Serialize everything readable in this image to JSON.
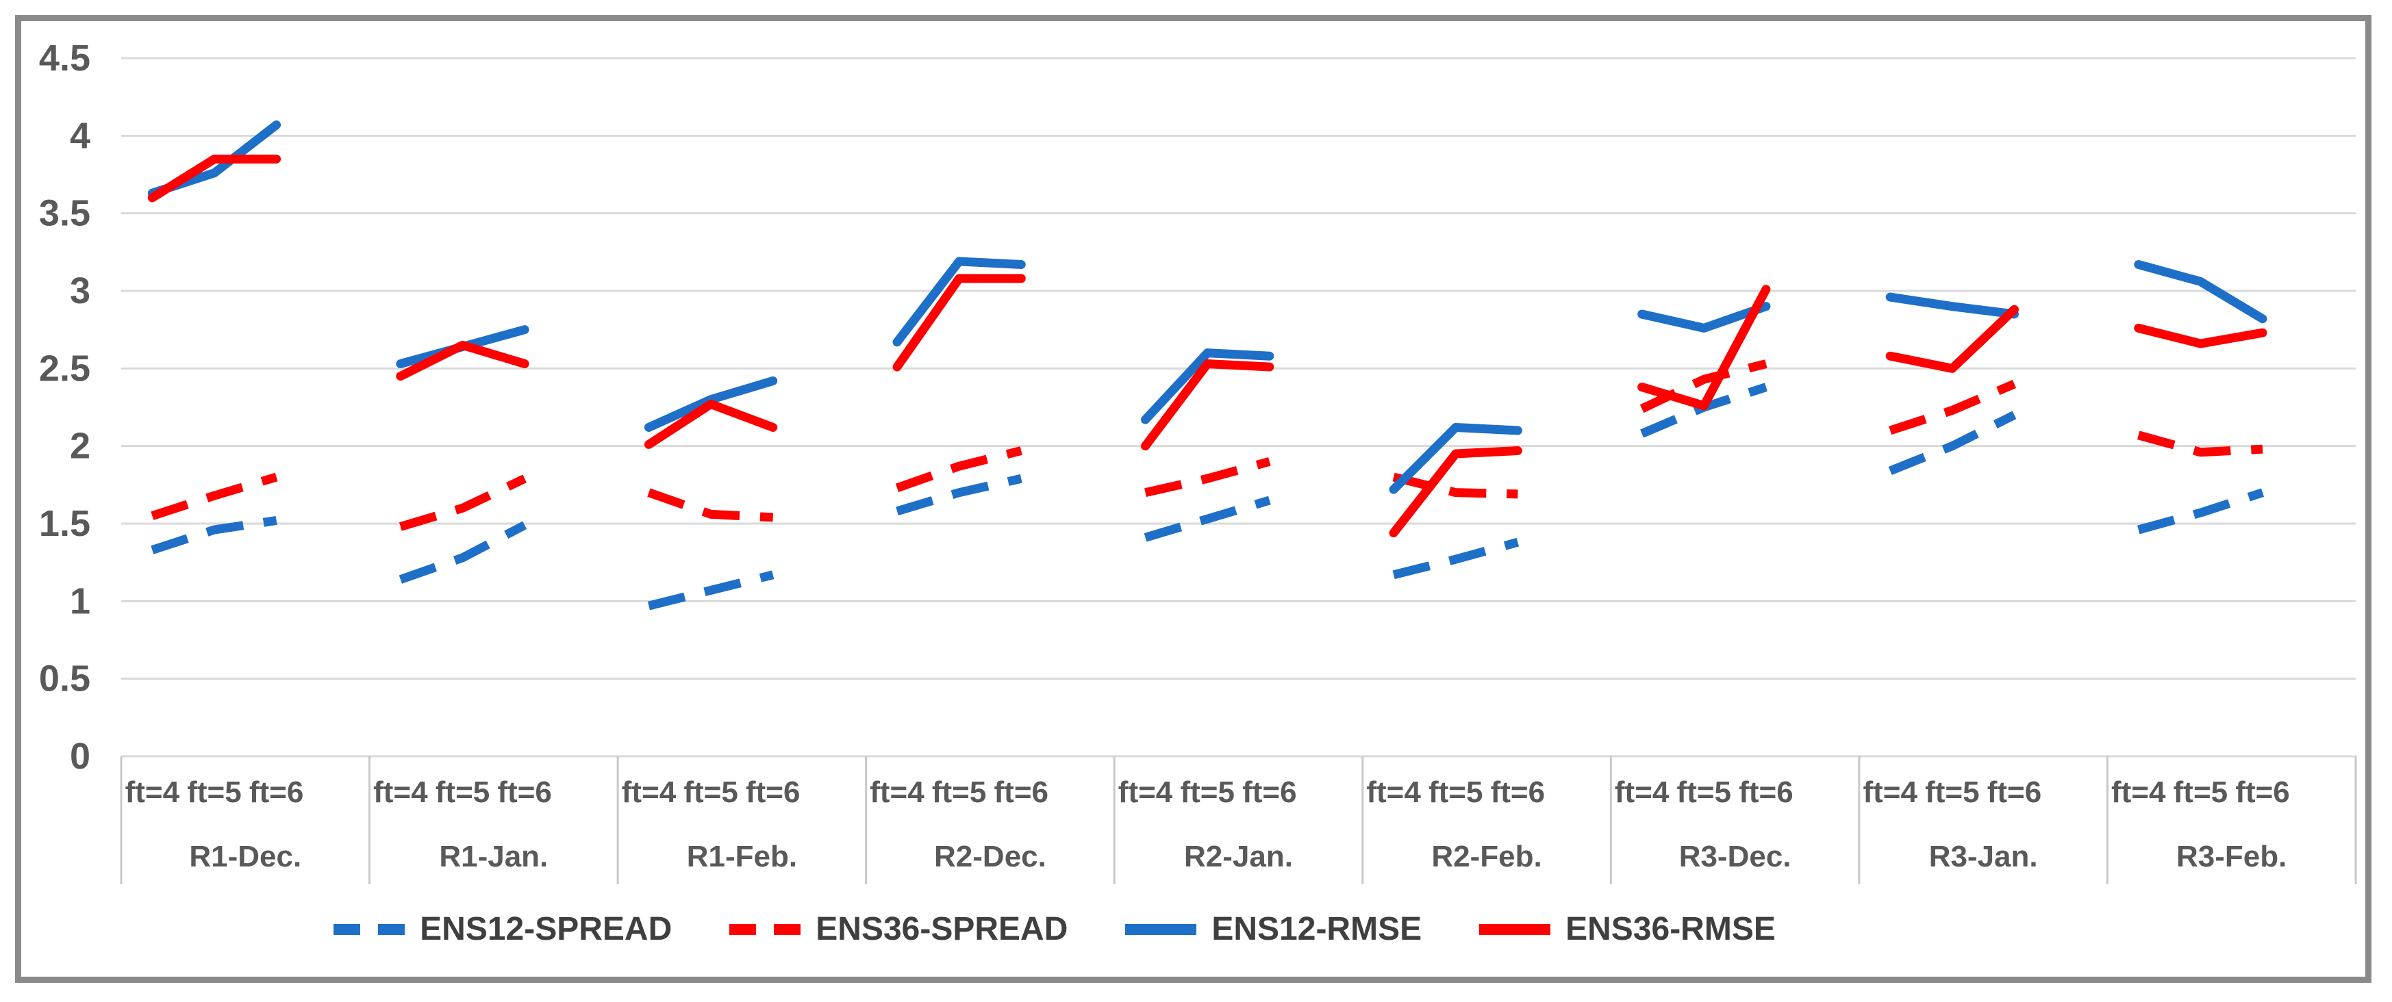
{
  "chart_data": {
    "type": "line",
    "title": "",
    "y_axis": {
      "min": 0,
      "max": 4.5,
      "step": 0.5,
      "tick_labels": [
        "4.5",
        "4",
        "3.5",
        "3",
        "2.5",
        "2",
        "1.5",
        "1",
        "0.5",
        "0"
      ]
    },
    "x_axis": {
      "groups": [
        "R1-Dec.",
        "R1-Jan.",
        "R1-Feb.",
        "R2-Dec.",
        "R2-Jan.",
        "R2-Feb.",
        "R3-Dec.",
        "R3-Jan.",
        "R3-Feb."
      ],
      "sub_categories": [
        "ft=4",
        "ft=5",
        "ft=6"
      ]
    },
    "grid": true,
    "legend": {
      "position": "bottom",
      "entries": [
        "ENS12-SPREAD",
        "ENS36-SPREAD",
        "ENS12-RMSE",
        "ENS36-RMSE"
      ]
    },
    "series": [
      {
        "name": "ENS12-SPREAD",
        "style": "dashed",
        "color": "#1e6fc8",
        "values": [
          [
            1.33,
            1.46,
            1.52
          ],
          [
            1.14,
            1.28,
            1.49
          ],
          [
            0.97,
            1.07,
            1.17
          ],
          [
            1.58,
            1.7,
            1.79
          ],
          [
            1.41,
            1.53,
            1.65
          ],
          [
            1.17,
            1.27,
            1.38
          ],
          [
            2.08,
            2.25,
            2.38
          ],
          [
            1.84,
            2.0,
            2.2
          ],
          [
            1.46,
            1.57,
            1.7
          ]
        ]
      },
      {
        "name": "ENS36-SPREAD",
        "style": "dashed",
        "color": "#ff0000",
        "values": [
          [
            1.55,
            1.68,
            1.8
          ],
          [
            1.48,
            1.6,
            1.79
          ],
          [
            1.7,
            1.56,
            1.54
          ],
          [
            1.73,
            1.87,
            1.97
          ],
          [
            1.7,
            1.79,
            1.9
          ],
          [
            1.8,
            1.7,
            1.69
          ],
          [
            2.24,
            2.43,
            2.53
          ],
          [
            2.1,
            2.23,
            2.4
          ],
          [
            2.07,
            1.96,
            1.98
          ]
        ]
      },
      {
        "name": "ENS12-RMSE",
        "style": "solid",
        "color": "#1e6fc8",
        "values": [
          [
            3.63,
            3.76,
            4.07
          ],
          [
            2.53,
            2.64,
            2.75
          ],
          [
            2.12,
            2.3,
            2.42
          ],
          [
            2.67,
            3.19,
            3.17
          ],
          [
            2.17,
            2.6,
            2.58
          ],
          [
            1.72,
            2.12,
            2.1
          ],
          [
            2.85,
            2.76,
            2.9
          ],
          [
            2.96,
            2.9,
            2.85
          ],
          [
            3.17,
            3.06,
            2.82
          ]
        ]
      },
      {
        "name": "ENS36-RMSE",
        "style": "solid",
        "color": "#ff0000",
        "values": [
          [
            3.6,
            3.85,
            3.85
          ],
          [
            2.45,
            2.65,
            2.53
          ],
          [
            2.01,
            2.27,
            2.12
          ],
          [
            2.51,
            3.08,
            3.08
          ],
          [
            2.0,
            2.53,
            2.51
          ],
          [
            1.44,
            1.95,
            1.97
          ],
          [
            2.38,
            2.26,
            3.01
          ],
          [
            2.58,
            2.5,
            2.88
          ],
          [
            2.76,
            2.66,
            2.73
          ]
        ]
      }
    ]
  },
  "colors": {
    "blue": "#1e6fc8",
    "red": "#ff0000",
    "axis_text": "#595959",
    "legend_text": "#3f3f3f",
    "gridline": "#d9d9d9",
    "category_border": "#c9c9c9",
    "frame_border": "#8a8a8a",
    "background": "#ffffff"
  }
}
